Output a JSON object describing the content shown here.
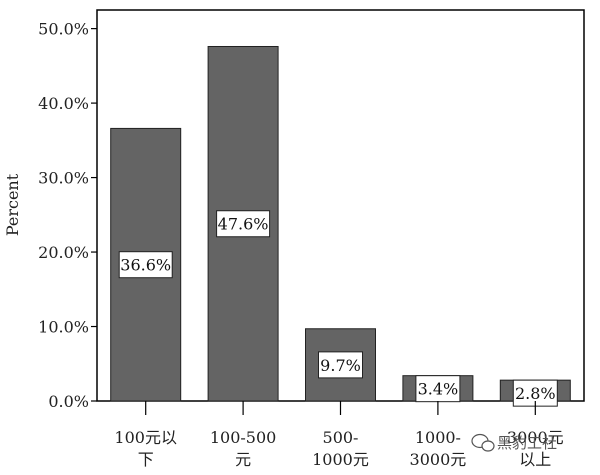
{
  "chart_data": {
    "type": "bar",
    "ylabel": "Percent",
    "categories": [
      [
        "100元以",
        "下"
      ],
      [
        "100-500",
        "元"
      ],
      [
        "500-",
        "1000元"
      ],
      [
        "1000-",
        "3000元"
      ],
      [
        "3000元",
        "以上"
      ]
    ],
    "values": [
      36.6,
      47.6,
      9.7,
      3.4,
      2.8
    ],
    "data_labels": [
      "36.6%",
      "47.6%",
      "9.7%",
      "3.4%",
      "2.8%"
    ],
    "yticks": [
      0,
      10,
      20,
      30,
      40,
      50
    ],
    "ytick_labels": [
      "0.0%",
      "10.0%",
      "20.0%",
      "30.0%",
      "40.0%",
      "50.0%"
    ],
    "ylim": [
      0,
      52.5
    ],
    "grid": false,
    "bar_color": "#646464"
  },
  "watermark": "黑豹工社"
}
